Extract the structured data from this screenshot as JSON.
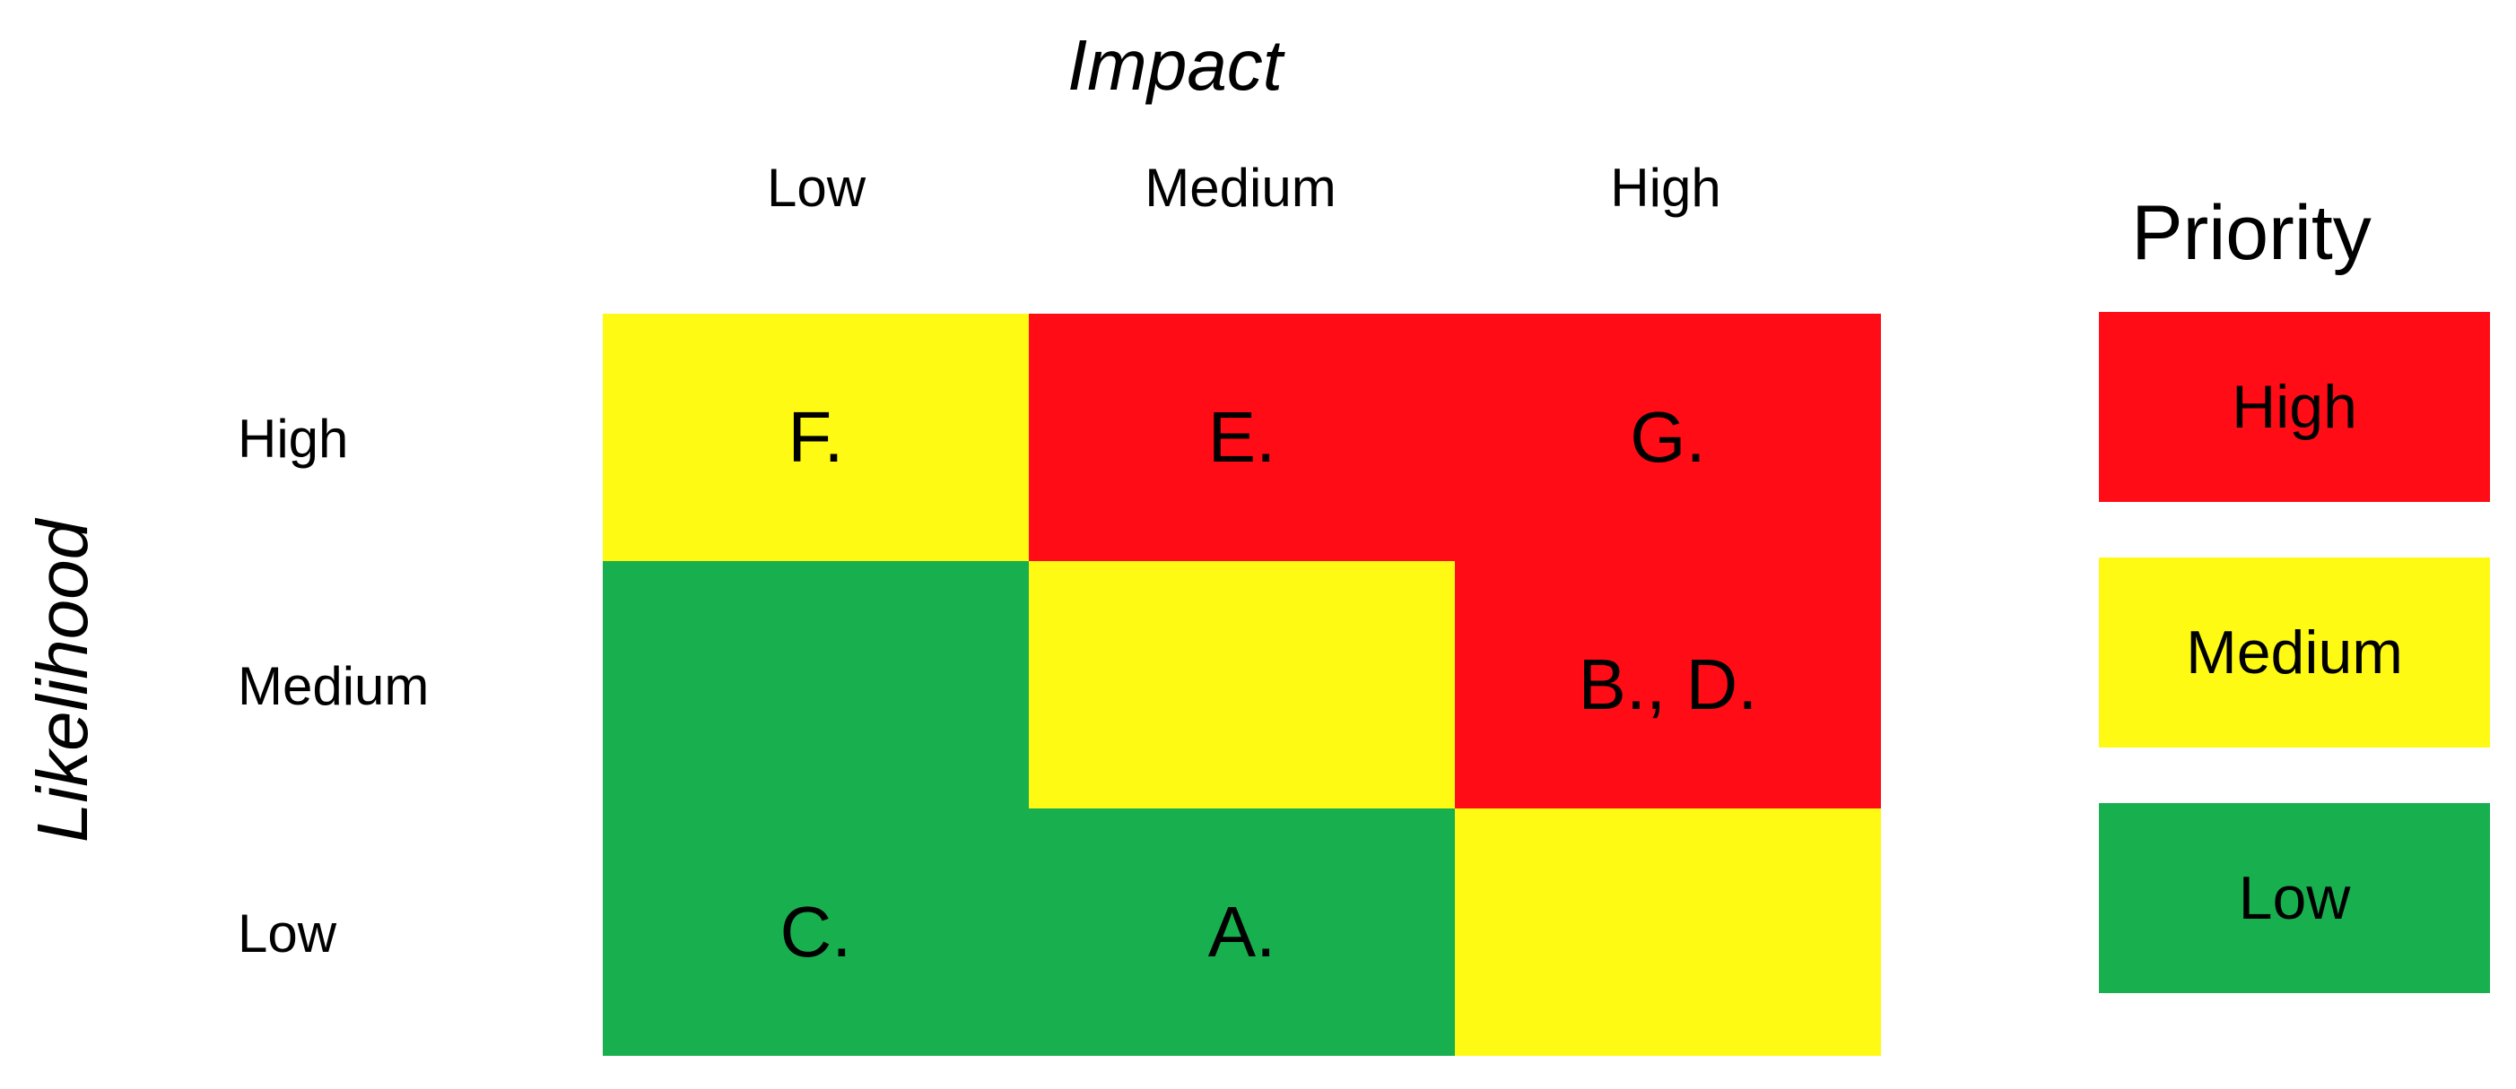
{
  "impact_title": "Impact",
  "likelihood_title": "Likelihood",
  "columns": [
    "Low",
    "Medium",
    "High"
  ],
  "rows": [
    "High",
    "Medium",
    "Low"
  ],
  "matrix": [
    [
      {
        "label": "F.",
        "priority": "medium"
      },
      {
        "label": "E.",
        "priority": "high"
      },
      {
        "label": "G.",
        "priority": "high"
      }
    ],
    [
      {
        "label": "",
        "priority": "low"
      },
      {
        "label": "",
        "priority": "medium"
      },
      {
        "label": "B., D.",
        "priority": "high"
      }
    ],
    [
      {
        "label": "C.",
        "priority": "low"
      },
      {
        "label": "A.",
        "priority": "low"
      },
      {
        "label": "",
        "priority": "medium"
      }
    ]
  ],
  "legend": {
    "title": "Priority",
    "items": [
      {
        "label": "High",
        "priority": "high"
      },
      {
        "label": "Medium",
        "priority": "medium"
      },
      {
        "label": "Low",
        "priority": "low"
      }
    ]
  },
  "colors": {
    "high": "#ff0c16",
    "medium": "#fffa14",
    "low": "#18b04f"
  }
}
